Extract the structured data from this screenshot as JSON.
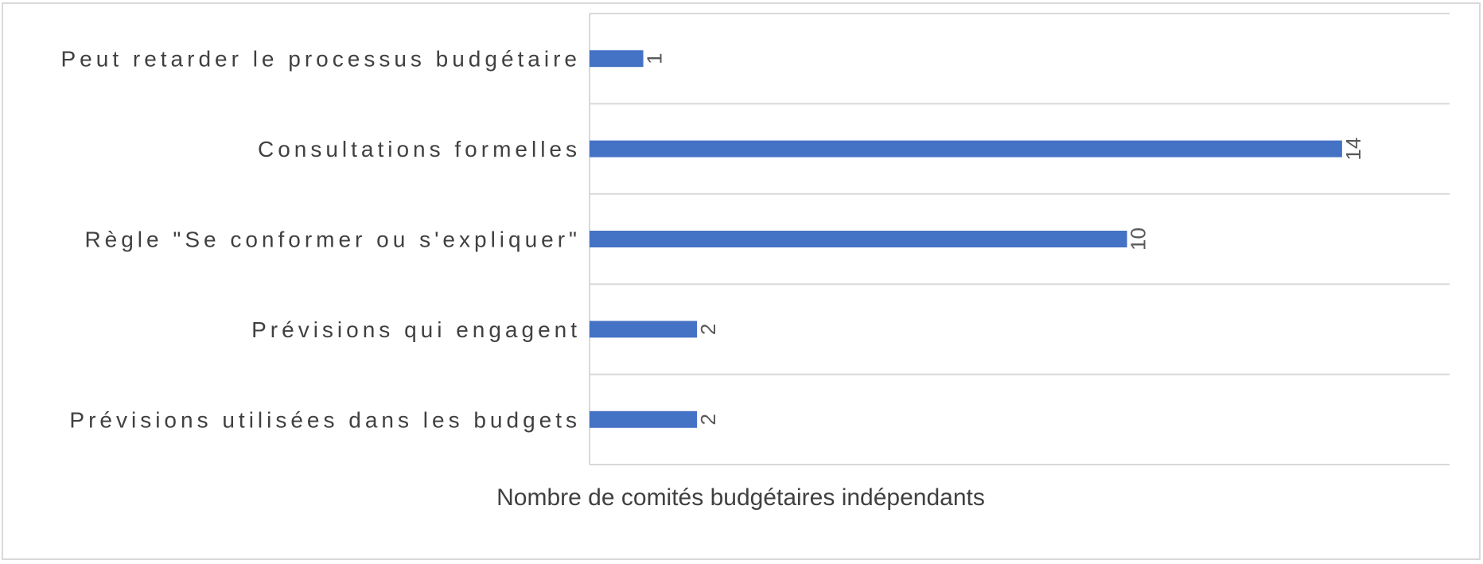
{
  "chart_data": {
    "type": "bar",
    "orientation": "horizontal",
    "categories": [
      "Peut retarder le processus budgétaire",
      "Consultations formelles",
      "Règle \"Se conformer ou s'expliquer\"",
      "Prévisions qui engagent",
      "Prévisions utilisées dans les budgets"
    ],
    "values": [
      1,
      14,
      10,
      2,
      2
    ],
    "data_labels": [
      "1",
      "14",
      "10",
      "2",
      "2"
    ],
    "title": "",
    "xlabel": "Nombre de comités budgétaires indépendants",
    "ylabel": "",
    "xlim": [
      0,
      16
    ],
    "grid": true,
    "legend": "none",
    "colors": {
      "bar": "#4472C4",
      "grid": "#d9d9d9",
      "text": "#404040",
      "data_label": "#595959",
      "frame": "#d9d9d9"
    }
  }
}
